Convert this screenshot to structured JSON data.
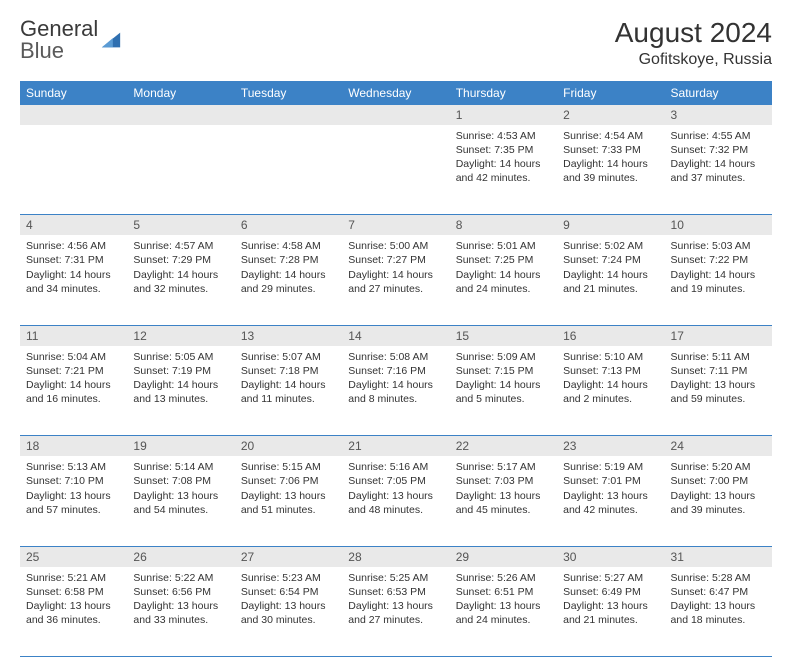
{
  "logo": {
    "text1": "General",
    "text2": "Blue"
  },
  "title": "August 2024",
  "location": "Gofitskoye, Russia",
  "colors": {
    "header_bg": "#3c82c6",
    "header_fg": "#ffffff",
    "daynum_bg": "#e9e9e9",
    "border": "#3c82c6",
    "text": "#333333",
    "logo_gray": "#5a5a5a"
  },
  "weekdays": [
    "Sunday",
    "Monday",
    "Tuesday",
    "Wednesday",
    "Thursday",
    "Friday",
    "Saturday"
  ],
  "weeks": [
    {
      "nums": [
        "",
        "",
        "",
        "",
        "1",
        "2",
        "3"
      ],
      "cells": [
        null,
        null,
        null,
        null,
        {
          "sunrise": "4:53 AM",
          "sunset": "7:35 PM",
          "daylight": "14 hours and 42 minutes."
        },
        {
          "sunrise": "4:54 AM",
          "sunset": "7:33 PM",
          "daylight": "14 hours and 39 minutes."
        },
        {
          "sunrise": "4:55 AM",
          "sunset": "7:32 PM",
          "daylight": "14 hours and 37 minutes."
        }
      ]
    },
    {
      "nums": [
        "4",
        "5",
        "6",
        "7",
        "8",
        "9",
        "10"
      ],
      "cells": [
        {
          "sunrise": "4:56 AM",
          "sunset": "7:31 PM",
          "daylight": "14 hours and 34 minutes."
        },
        {
          "sunrise": "4:57 AM",
          "sunset": "7:29 PM",
          "daylight": "14 hours and 32 minutes."
        },
        {
          "sunrise": "4:58 AM",
          "sunset": "7:28 PM",
          "daylight": "14 hours and 29 minutes."
        },
        {
          "sunrise": "5:00 AM",
          "sunset": "7:27 PM",
          "daylight": "14 hours and 27 minutes."
        },
        {
          "sunrise": "5:01 AM",
          "sunset": "7:25 PM",
          "daylight": "14 hours and 24 minutes."
        },
        {
          "sunrise": "5:02 AM",
          "sunset": "7:24 PM",
          "daylight": "14 hours and 21 minutes."
        },
        {
          "sunrise": "5:03 AM",
          "sunset": "7:22 PM",
          "daylight": "14 hours and 19 minutes."
        }
      ]
    },
    {
      "nums": [
        "11",
        "12",
        "13",
        "14",
        "15",
        "16",
        "17"
      ],
      "cells": [
        {
          "sunrise": "5:04 AM",
          "sunset": "7:21 PM",
          "daylight": "14 hours and 16 minutes."
        },
        {
          "sunrise": "5:05 AM",
          "sunset": "7:19 PM",
          "daylight": "14 hours and 13 minutes."
        },
        {
          "sunrise": "5:07 AM",
          "sunset": "7:18 PM",
          "daylight": "14 hours and 11 minutes."
        },
        {
          "sunrise": "5:08 AM",
          "sunset": "7:16 PM",
          "daylight": "14 hours and 8 minutes."
        },
        {
          "sunrise": "5:09 AM",
          "sunset": "7:15 PM",
          "daylight": "14 hours and 5 minutes."
        },
        {
          "sunrise": "5:10 AM",
          "sunset": "7:13 PM",
          "daylight": "14 hours and 2 minutes."
        },
        {
          "sunrise": "5:11 AM",
          "sunset": "7:11 PM",
          "daylight": "13 hours and 59 minutes."
        }
      ]
    },
    {
      "nums": [
        "18",
        "19",
        "20",
        "21",
        "22",
        "23",
        "24"
      ],
      "cells": [
        {
          "sunrise": "5:13 AM",
          "sunset": "7:10 PM",
          "daylight": "13 hours and 57 minutes."
        },
        {
          "sunrise": "5:14 AM",
          "sunset": "7:08 PM",
          "daylight": "13 hours and 54 minutes."
        },
        {
          "sunrise": "5:15 AM",
          "sunset": "7:06 PM",
          "daylight": "13 hours and 51 minutes."
        },
        {
          "sunrise": "5:16 AM",
          "sunset": "7:05 PM",
          "daylight": "13 hours and 48 minutes."
        },
        {
          "sunrise": "5:17 AM",
          "sunset": "7:03 PM",
          "daylight": "13 hours and 45 minutes."
        },
        {
          "sunrise": "5:19 AM",
          "sunset": "7:01 PM",
          "daylight": "13 hours and 42 minutes."
        },
        {
          "sunrise": "5:20 AM",
          "sunset": "7:00 PM",
          "daylight": "13 hours and 39 minutes."
        }
      ]
    },
    {
      "nums": [
        "25",
        "26",
        "27",
        "28",
        "29",
        "30",
        "31"
      ],
      "cells": [
        {
          "sunrise": "5:21 AM",
          "sunset": "6:58 PM",
          "daylight": "13 hours and 36 minutes."
        },
        {
          "sunrise": "5:22 AM",
          "sunset": "6:56 PM",
          "daylight": "13 hours and 33 minutes."
        },
        {
          "sunrise": "5:23 AM",
          "sunset": "6:54 PM",
          "daylight": "13 hours and 30 minutes."
        },
        {
          "sunrise": "5:25 AM",
          "sunset": "6:53 PM",
          "daylight": "13 hours and 27 minutes."
        },
        {
          "sunrise": "5:26 AM",
          "sunset": "6:51 PM",
          "daylight": "13 hours and 24 minutes."
        },
        {
          "sunrise": "5:27 AM",
          "sunset": "6:49 PM",
          "daylight": "13 hours and 21 minutes."
        },
        {
          "sunrise": "5:28 AM",
          "sunset": "6:47 PM",
          "daylight": "13 hours and 18 minutes."
        }
      ]
    }
  ],
  "labels": {
    "sunrise": "Sunrise:",
    "sunset": "Sunset:",
    "daylight": "Daylight:"
  }
}
